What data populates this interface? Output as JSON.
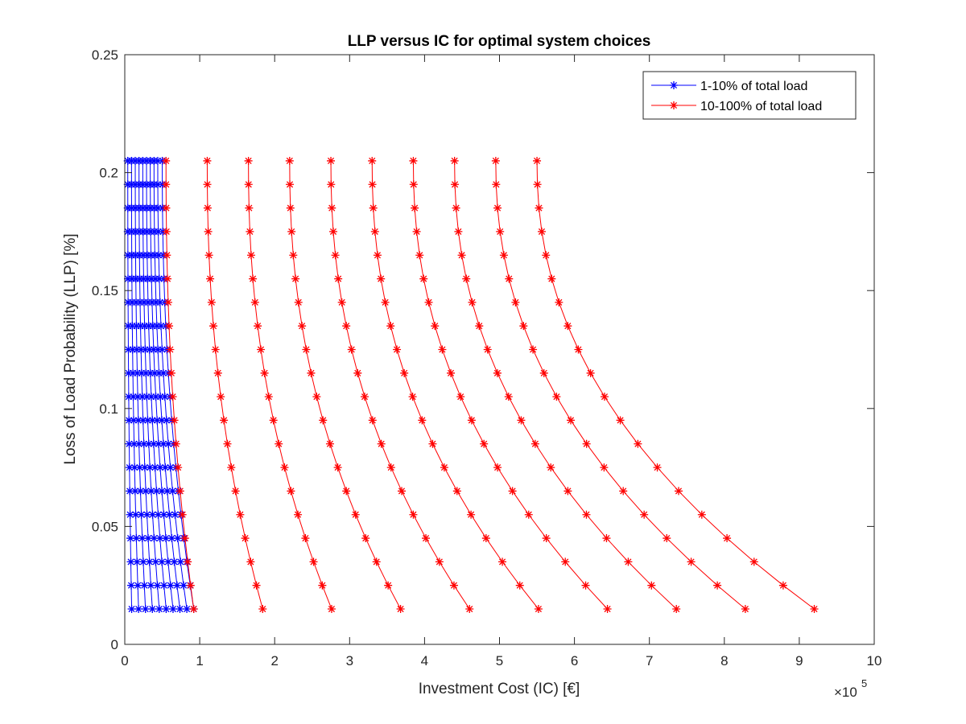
{
  "chart_data": {
    "type": "line",
    "title": "LLP versus IC for optimal system choices",
    "xlabel": "Investment Cost (IC) [€]",
    "ylabel": "Loss of Load Probability (LLP) [%]",
    "x_exponent": {
      "base": "×10",
      "power": "5"
    },
    "xlim": [
      0,
      10
    ],
    "ylim": [
      0,
      0.25
    ],
    "x_ticks": [
      "0",
      "1",
      "2",
      "3",
      "4",
      "5",
      "6",
      "7",
      "8",
      "9",
      "10"
    ],
    "y_ticks": [
      "0",
      "0.05",
      "0.1",
      "0.15",
      "0.2",
      "0.25"
    ],
    "grid": false,
    "legend_position": "top-right",
    "y_levels": [
      0.015,
      0.025,
      0.035,
      0.045,
      0.055,
      0.065,
      0.075,
      0.085,
      0.095,
      0.105,
      0.115,
      0.125,
      0.135,
      0.145,
      0.155,
      0.165,
      0.175,
      0.185,
      0.195,
      0.205
    ],
    "series": [
      {
        "name": "1-10% of total load",
        "color": "#0000ff",
        "marker": "asterisk",
        "curves": [
          {
            "x_at_bottom": 0.092,
            "x_at_top": 0.04
          },
          {
            "x_at_bottom": 0.184,
            "x_at_top": 0.09
          },
          {
            "x_at_bottom": 0.276,
            "x_at_top": 0.14
          },
          {
            "x_at_bottom": 0.368,
            "x_at_top": 0.19
          },
          {
            "x_at_bottom": 0.46,
            "x_at_top": 0.24
          },
          {
            "x_at_bottom": 0.552,
            "x_at_top": 0.29
          },
          {
            "x_at_bottom": 0.644,
            "x_at_top": 0.34
          },
          {
            "x_at_bottom": 0.736,
            "x_at_top": 0.39
          },
          {
            "x_at_bottom": 0.828,
            "x_at_top": 0.44
          },
          {
            "x_at_bottom": 0.92,
            "x_at_top": 0.5
          }
        ]
      },
      {
        "name": "10-100% of total load",
        "color": "#ff0000",
        "marker": "asterisk",
        "curves": [
          {
            "x_at_bottom": 0.92,
            "x_at_top": 0.55
          },
          {
            "x_at_bottom": 1.84,
            "x_at_top": 1.1
          },
          {
            "x_at_bottom": 2.76,
            "x_at_top": 1.65
          },
          {
            "x_at_bottom": 3.68,
            "x_at_top": 2.2
          },
          {
            "x_at_bottom": 4.6,
            "x_at_top": 2.75
          },
          {
            "x_at_bottom": 5.52,
            "x_at_top": 3.3
          },
          {
            "x_at_bottom": 6.44,
            "x_at_top": 3.85
          },
          {
            "x_at_bottom": 7.36,
            "x_at_top": 4.4
          },
          {
            "x_at_bottom": 8.28,
            "x_at_top": 4.95
          },
          {
            "x_at_bottom": 9.2,
            "x_at_top": 5.5
          }
        ]
      }
    ]
  }
}
